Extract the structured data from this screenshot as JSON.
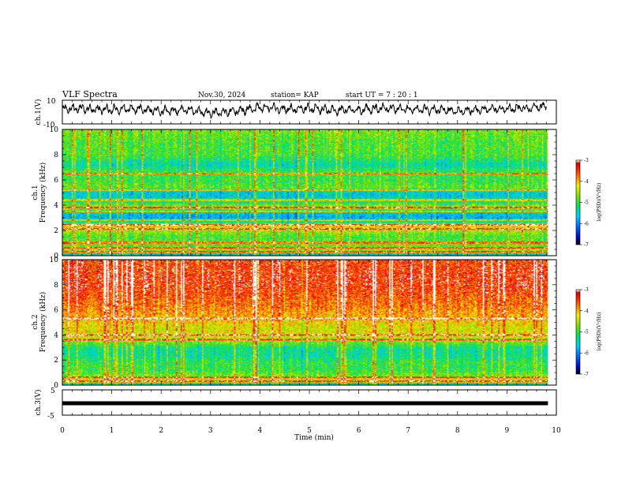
{
  "header": {
    "title": "VLF Spectra",
    "date": "Nov.30, 2024",
    "station": "station= KAP",
    "start_ut": "start  UT  =   7 : 20 : 1"
  },
  "chart_data": [
    {
      "type": "line",
      "panel": "ch1-waveform",
      "ylabel": "ch.1(V)",
      "ylim": [
        -10,
        10
      ],
      "ytick_labels": [
        "10",
        "-10"
      ],
      "xlim": [
        0,
        10
      ],
      "series": [
        {
          "values_note_min": -6,
          "values_note_max": 9
        }
      ],
      "waveform_envelope": [
        [
          0.0,
          2.5
        ],
        [
          0.5,
          3.0
        ],
        [
          1.0,
          2.0
        ],
        [
          1.5,
          3.0
        ],
        [
          2.0,
          0.5
        ],
        [
          2.5,
          2.0
        ],
        [
          3.0,
          -1.0
        ],
        [
          3.5,
          0.5
        ],
        [
          4.0,
          4.0
        ],
        [
          4.5,
          2.5
        ],
        [
          5.0,
          3.0
        ],
        [
          5.5,
          1.5
        ],
        [
          6.0,
          2.0
        ],
        [
          6.5,
          3.5
        ],
        [
          7.0,
          2.0
        ],
        [
          7.5,
          2.0
        ],
        [
          8.0,
          1.0
        ],
        [
          8.5,
          2.0
        ],
        [
          9.0,
          3.0
        ],
        [
          9.5,
          3.5
        ],
        [
          9.8,
          5.0
        ]
      ]
    },
    {
      "type": "heatmap",
      "panel": "ch1-spectrogram",
      "ylabel": "ch.1\nFrequency (kHz)",
      "ylabel_line1": "ch.1",
      "ylabel_line2": "Frequency (kHz)",
      "ylim": [
        0,
        10
      ],
      "ytick_labels": [
        "0",
        "2",
        "4",
        "6",
        "8",
        "10"
      ],
      "xlim": [
        0,
        10
      ],
      "data_end_min": 9.83,
      "colorbar": {
        "label": "log(PSD)(V²/Hz)",
        "range": [
          -7,
          -3
        ],
        "tick_labels": [
          "-3",
          "-4",
          "-5",
          "-6",
          "-7"
        ]
      },
      "band_profile": [
        [
          0.0,
          -4.0
        ],
        [
          0.3,
          -4.6
        ],
        [
          0.8,
          -4.8
        ],
        [
          1.5,
          -4.9
        ],
        [
          2.0,
          -4.5
        ],
        [
          2.4,
          -4.0
        ],
        [
          2.6,
          -5.2
        ],
        [
          3.0,
          -5.8
        ],
        [
          3.4,
          -5.6
        ],
        [
          3.8,
          -4.4
        ],
        [
          4.4,
          -5.5
        ],
        [
          5.0,
          -5.6
        ],
        [
          5.4,
          -4.8
        ],
        [
          6.0,
          -5.0
        ],
        [
          6.6,
          -4.9
        ],
        [
          7.2,
          -5.4
        ],
        [
          8.0,
          -4.9
        ],
        [
          9.0,
          -4.9
        ],
        [
          10.0,
          -4.7
        ]
      ],
      "horizontal_lines_khz": [
        0.3,
        0.6,
        1.0,
        2.1,
        2.4,
        2.8,
        3.5,
        3.8,
        4.4,
        5.2,
        6.5
      ]
    },
    {
      "type": "heatmap",
      "panel": "ch2-spectrogram",
      "ylabel": "ch.2\nFrequency (kHz)",
      "ylabel_line1": "ch.2",
      "ylabel_line2": "Frequency (kHz)",
      "ylim": [
        0,
        10
      ],
      "ytick_labels": [
        "0",
        "2",
        "4",
        "6",
        "8",
        "10"
      ],
      "xlim": [
        0,
        10
      ],
      "data_end_min": 9.83,
      "colorbar": {
        "label": "log(PSD)(V²/Hz)",
        "range": [
          -7,
          -3
        ],
        "tick_labels": [
          "-3",
          "-4",
          "-5",
          "-6",
          "-7"
        ]
      },
      "band_profile": [
        [
          0.0,
          -3.6
        ],
        [
          0.2,
          -4.3
        ],
        [
          0.6,
          -4.6
        ],
        [
          1.2,
          -5.0
        ],
        [
          1.8,
          -5.0
        ],
        [
          2.4,
          -5.3
        ],
        [
          3.0,
          -5.2
        ],
        [
          3.6,
          -4.5
        ],
        [
          4.0,
          -4.2
        ],
        [
          4.6,
          -4.3
        ],
        [
          5.2,
          -4.0
        ],
        [
          6.0,
          -3.8
        ],
        [
          7.0,
          -3.6
        ],
        [
          8.0,
          -3.4
        ],
        [
          9.0,
          -3.4
        ],
        [
          10.0,
          -3.5
        ]
      ],
      "horizontal_lines_khz": [
        0.3,
        0.6,
        3.6,
        4.0,
        5.3
      ]
    },
    {
      "type": "line",
      "panel": "ch3-waveform",
      "ylabel": "ch.3(V)",
      "ylim": [
        -5,
        5
      ],
      "ytick_labels": [
        "5",
        "-5"
      ],
      "xlim": [
        0,
        10
      ],
      "constant_value": -0.3,
      "xlabel": "Time  (min)",
      "xtick_labels": [
        "0",
        "1",
        "2",
        "3",
        "4",
        "5",
        "6",
        "7",
        "8",
        "9",
        "10"
      ]
    }
  ],
  "colors": {
    "axis": "#000000",
    "waveform": "#000000",
    "colormap": [
      "#000000",
      "#0000c8",
      "#0070ff",
      "#00d0ff",
      "#00e060",
      "#80e000",
      "#f0f000",
      "#ff8000",
      "#ff2000",
      "#d00000",
      "#ffffff"
    ]
  }
}
